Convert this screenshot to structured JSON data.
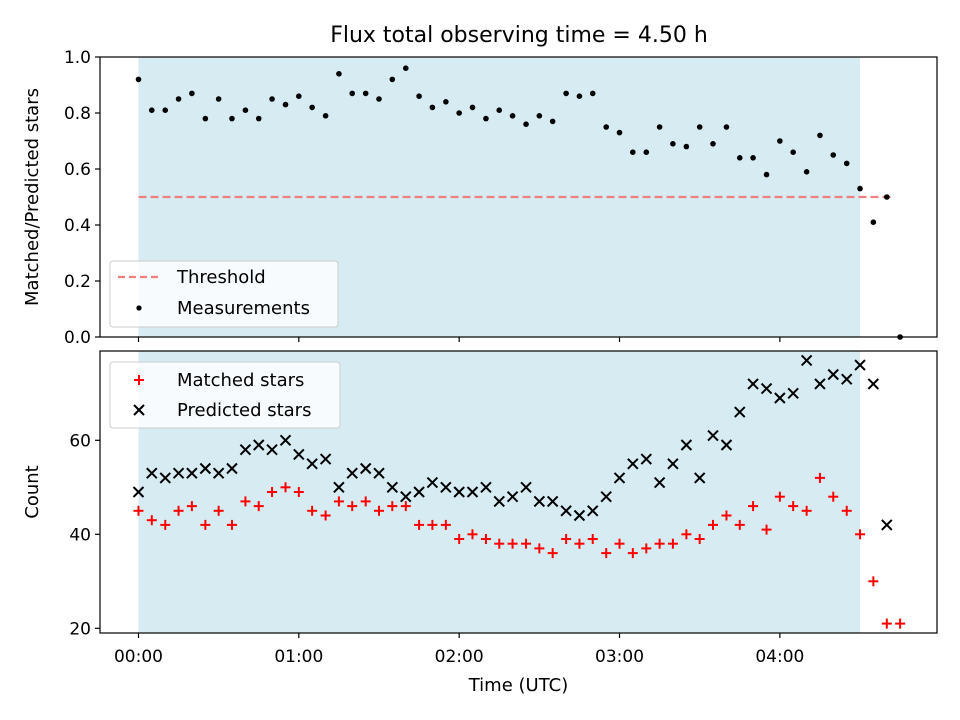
{
  "chart_data": [
    {
      "type": "scatter",
      "title": "Flux total observing time = 4.50 h",
      "xlabel": "",
      "ylabel": "Matched/Predicted stars",
      "ylim": [
        0.0,
        1.0
      ],
      "xlim_hours": [
        -0.24,
        4.98
      ],
      "yticks": [
        "0.0",
        "0.2",
        "0.4",
        "0.6",
        "0.8",
        "1.0"
      ],
      "shaded_interval_hours": [
        0.0,
        4.5
      ],
      "shade_color": "#add8e6",
      "grid": false,
      "legend_position": "lower left",
      "threshold": {
        "name": "Threshold",
        "y": 0.5,
        "x_range_hours": [
          0.0,
          4.7
        ],
        "color": "#f08080",
        "style": "dashed"
      },
      "series": [
        {
          "name": "Measurements",
          "color": "#000000",
          "marker": "dot",
          "x_hours": [
            0.0,
            0.083,
            0.167,
            0.25,
            0.333,
            0.417,
            0.5,
            0.583,
            0.667,
            0.75,
            0.833,
            0.917,
            1.0,
            1.083,
            1.167,
            1.25,
            1.333,
            1.417,
            1.5,
            1.583,
            1.667,
            1.75,
            1.833,
            1.917,
            2.0,
            2.083,
            2.167,
            2.25,
            2.333,
            2.417,
            2.5,
            2.583,
            2.667,
            2.75,
            2.833,
            2.917,
            3.0,
            3.083,
            3.167,
            3.25,
            3.333,
            3.417,
            3.5,
            3.583,
            3.667,
            3.75,
            3.833,
            3.917,
            4.0,
            4.083,
            4.167,
            4.25,
            4.333,
            4.417,
            4.5,
            4.583,
            4.667,
            4.75
          ],
          "y": [
            0.92,
            0.81,
            0.81,
            0.85,
            0.87,
            0.78,
            0.85,
            0.78,
            0.81,
            0.78,
            0.85,
            0.83,
            0.86,
            0.82,
            0.79,
            0.94,
            0.87,
            0.87,
            0.85,
            0.92,
            0.96,
            0.86,
            0.82,
            0.84,
            0.8,
            0.82,
            0.78,
            0.81,
            0.79,
            0.76,
            0.79,
            0.77,
            0.87,
            0.86,
            0.87,
            0.75,
            0.73,
            0.66,
            0.66,
            0.75,
            0.69,
            0.68,
            0.75,
            0.69,
            0.75,
            0.64,
            0.64,
            0.58,
            0.7,
            0.66,
            0.59,
            0.72,
            0.65,
            0.62,
            0.53,
            0.41,
            0.5,
            0.0
          ]
        }
      ]
    },
    {
      "type": "scatter",
      "title": "",
      "xlabel": "Time (UTC)",
      "ylabel": "Count",
      "ylim": [
        19,
        79
      ],
      "xlim_hours": [
        -0.24,
        4.98
      ],
      "yticks": [
        "20",
        "40",
        "60"
      ],
      "xticks": [
        "00:00",
        "01:00",
        "02:00",
        "03:00",
        "04:00"
      ],
      "shaded_interval_hours": [
        0.0,
        4.5
      ],
      "shade_color": "#add8e6",
      "grid": false,
      "legend_position": "upper left",
      "series": [
        {
          "name": "Matched stars",
          "color": "#ff0000",
          "marker": "plus",
          "x_hours": [
            0.0,
            0.083,
            0.167,
            0.25,
            0.333,
            0.417,
            0.5,
            0.583,
            0.667,
            0.75,
            0.833,
            0.917,
            1.0,
            1.083,
            1.167,
            1.25,
            1.333,
            1.417,
            1.5,
            1.583,
            1.667,
            1.75,
            1.833,
            1.917,
            2.0,
            2.083,
            2.167,
            2.25,
            2.333,
            2.417,
            2.5,
            2.583,
            2.667,
            2.75,
            2.833,
            2.917,
            3.0,
            3.083,
            3.167,
            3.25,
            3.333,
            3.417,
            3.5,
            3.583,
            3.667,
            3.75,
            3.833,
            3.917,
            4.0,
            4.083,
            4.167,
            4.25,
            4.333,
            4.417,
            4.5,
            4.583,
            4.667,
            4.75
          ],
          "y": [
            45,
            43,
            42,
            45,
            46,
            42,
            45,
            42,
            47,
            46,
            49,
            50,
            49,
            45,
            44,
            47,
            46,
            47,
            45,
            46,
            46,
            42,
            42,
            42,
            39,
            40,
            39,
            38,
            38,
            38,
            37,
            36,
            39,
            38,
            39,
            36,
            38,
            36,
            37,
            38,
            38,
            40,
            39,
            42,
            44,
            42,
            46,
            41,
            48,
            46,
            45,
            52,
            48,
            45,
            40,
            30,
            21,
            21
          ]
        },
        {
          "name": "Predicted stars",
          "color": "#000000",
          "marker": "x",
          "x_hours": [
            0.0,
            0.083,
            0.167,
            0.25,
            0.333,
            0.417,
            0.5,
            0.583,
            0.667,
            0.75,
            0.833,
            0.917,
            1.0,
            1.083,
            1.167,
            1.25,
            1.333,
            1.417,
            1.5,
            1.583,
            1.667,
            1.75,
            1.833,
            1.917,
            2.0,
            2.083,
            2.167,
            2.25,
            2.333,
            2.417,
            2.5,
            2.583,
            2.667,
            2.75,
            2.833,
            2.917,
            3.0,
            3.083,
            3.167,
            3.25,
            3.333,
            3.417,
            3.5,
            3.583,
            3.667,
            3.75,
            3.833,
            3.917,
            4.0,
            4.083,
            4.167,
            4.25,
            4.333,
            4.417,
            4.5,
            4.583,
            4.667
          ],
          "y": [
            49,
            53,
            52,
            53,
            53,
            54,
            53,
            54,
            58,
            59,
            58,
            60,
            57,
            55,
            56,
            50,
            53,
            54,
            53,
            50,
            48,
            49,
            51,
            50,
            49,
            49,
            50,
            47,
            48,
            50,
            47,
            47,
            45,
            44,
            45,
            48,
            52,
            55,
            56,
            51,
            55,
            59,
            52,
            61,
            59,
            66,
            72,
            71,
            69,
            70,
            77,
            72,
            74,
            73,
            76,
            72,
            42
          ]
        }
      ]
    }
  ]
}
